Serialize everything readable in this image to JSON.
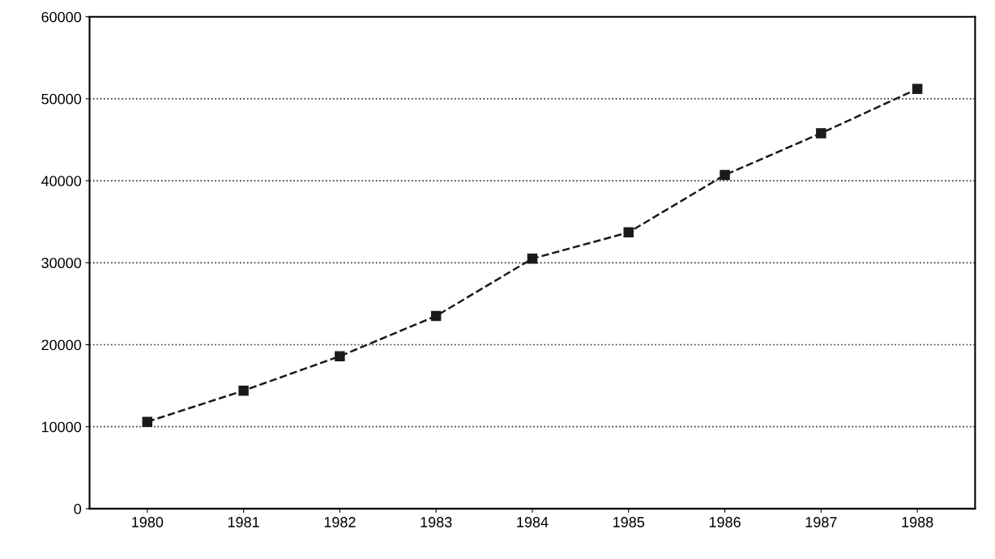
{
  "chart_data": {
    "type": "line",
    "categories": [
      "1980",
      "1981",
      "1982",
      "1983",
      "1984",
      "1985",
      "1986",
      "1987",
      "1988"
    ],
    "series": [
      {
        "color": "#1a1a1a",
        "values": [
          10600,
          14400,
          18600,
          23500,
          30500,
          33700,
          40700,
          45800,
          51200
        ]
      }
    ],
    "ylim": [
      0,
      60000
    ],
    "yticks": [
      0,
      10000,
      20000,
      30000,
      40000,
      50000,
      60000
    ],
    "grid": "y",
    "marker": "square",
    "line_style": "dashed"
  }
}
